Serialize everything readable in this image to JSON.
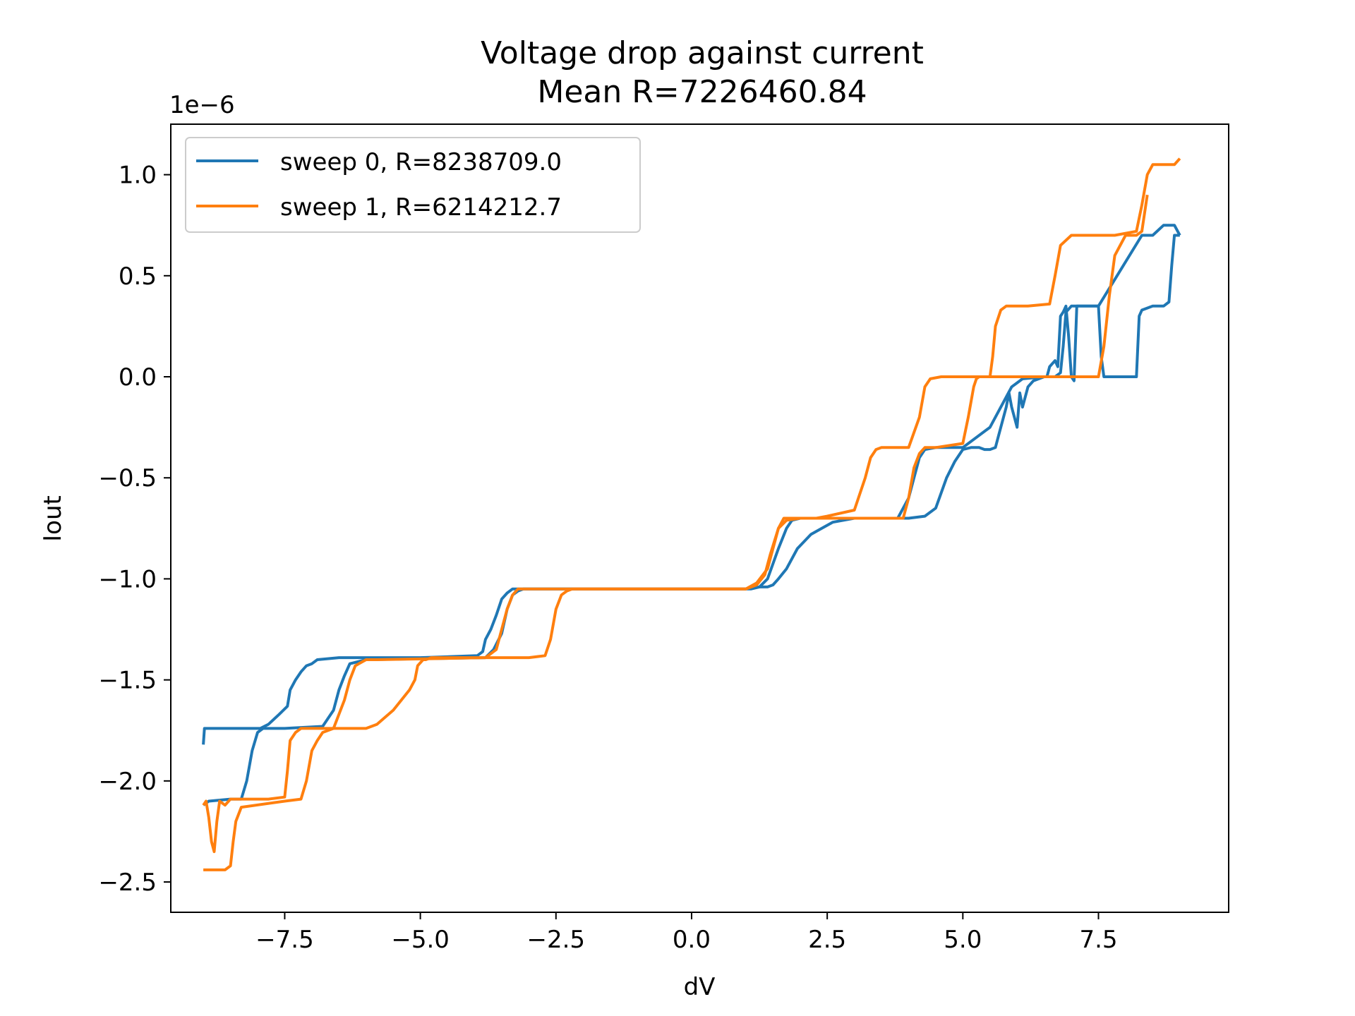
{
  "chart_data": {
    "type": "line",
    "title": "Voltage drop against current",
    "subtitle": "Mean R=7226460.84",
    "xlabel": "dV",
    "ylabel": "Iout",
    "y_offset_text": "1e−6",
    "xlim": [
      -9.6,
      9.9
    ],
    "ylim": [
      -2.65,
      1.25
    ],
    "x_ticks": [
      -7.5,
      -5.0,
      -2.5,
      0.0,
      2.5,
      5.0,
      7.5
    ],
    "x_tick_labels": [
      "−7.5",
      "−5.0",
      "−2.5",
      "0.0",
      "2.5",
      "5.0",
      "7.5"
    ],
    "y_ticks": [
      1.0,
      0.5,
      0.0,
      -0.5,
      -1.0,
      -1.5,
      -2.0,
      -2.5
    ],
    "y_tick_labels": [
      "1.0",
      "0.5",
      "0.0",
      "−0.5",
      "−1.0",
      "−1.5",
      "−2.0",
      "−2.5"
    ],
    "grid": false,
    "legend_position": "upper-left",
    "series": [
      {
        "name": "sweep 0, R=8238709.0",
        "color": "#1f77b4",
        "x": [
          -9.0,
          -8.98,
          -8.95,
          -8.0,
          -7.95,
          -7.8,
          -7.6,
          -7.45,
          -7.4,
          -7.3,
          -7.2,
          -7.1,
          -7.0,
          -6.9,
          -6.5,
          -6.3,
          -5.0,
          -3.95,
          -3.85,
          -3.8,
          -3.7,
          -3.6,
          -3.5,
          -3.4,
          -3.3,
          -3.2,
          -3.0,
          -2.5,
          1.0,
          1.1,
          1.25,
          1.4,
          1.5,
          1.6,
          1.75,
          1.95,
          2.2,
          2.4,
          2.6,
          3.0,
          4.0,
          4.3,
          4.5,
          4.7,
          4.85,
          4.95,
          5.0,
          5.15,
          5.3,
          5.4,
          5.5,
          5.6,
          5.65,
          5.8,
          5.85,
          5.9,
          6.0,
          6.05,
          6.1,
          6.2,
          6.3,
          6.5,
          6.55,
          6.6,
          6.7,
          6.75,
          6.8,
          6.85,
          6.9,
          6.95,
          7.0,
          7.05,
          7.1,
          7.15,
          7.2,
          7.25,
          7.3,
          7.5,
          7.55,
          7.6,
          7.62,
          7.7,
          8.0,
          8.2,
          8.25,
          8.3,
          8.5,
          8.7,
          8.8,
          8.85,
          8.9,
          9.0,
          9.0
        ],
        "y": [
          -1.82,
          -1.74,
          -1.74,
          -1.74,
          -1.74,
          -1.72,
          -1.67,
          -1.63,
          -1.55,
          -1.5,
          -1.46,
          -1.43,
          -1.42,
          -1.4,
          -1.39,
          -1.39,
          -1.39,
          -1.38,
          -1.36,
          -1.3,
          -1.25,
          -1.18,
          -1.1,
          -1.07,
          -1.05,
          -1.05,
          -1.05,
          -1.05,
          -1.05,
          -1.05,
          -1.04,
          -1.04,
          -1.03,
          -1.0,
          -0.95,
          -0.85,
          -0.78,
          -0.75,
          -0.72,
          -0.7,
          -0.7,
          -0.69,
          -0.65,
          -0.5,
          -0.42,
          -0.38,
          -0.36,
          -0.35,
          -0.35,
          -0.36,
          -0.36,
          -0.35,
          -0.3,
          -0.15,
          -0.08,
          -0.15,
          -0.25,
          -0.08,
          -0.15,
          -0.05,
          -0.02,
          0.0,
          0.0,
          0.05,
          0.08,
          0.05,
          0.3,
          0.32,
          0.35,
          0.2,
          0.0,
          -0.02,
          0.35,
          0.35,
          0.35,
          0.35,
          0.35,
          0.35,
          0.1,
          0.0,
          0.0,
          0.0,
          0.0,
          0.0,
          0.3,
          0.33,
          0.35,
          0.35,
          0.37,
          0.55,
          0.7,
          0.7,
          0.7
        ]
      },
      {
        "name": "",
        "color": "#1f77b4",
        "x": [
          -9.0,
          -8.9,
          -8.5,
          -8.3,
          -8.2,
          -8.1,
          -8.0,
          -7.9,
          -7.5,
          -6.8,
          -6.6,
          -6.5,
          -6.4,
          -6.3,
          -6.0,
          -3.8,
          -3.65,
          -3.5,
          -3.4,
          -3.3,
          -3.2,
          -3.1,
          -3.0,
          1.0,
          1.25,
          1.4,
          1.6,
          1.75,
          1.85,
          2.0,
          2.2,
          2.5,
          3.0,
          3.8,
          4.0,
          4.1,
          4.2,
          4.3,
          4.5,
          5.0,
          5.5,
          5.8,
          5.9,
          6.0,
          6.1,
          6.5,
          6.7,
          6.8,
          6.85,
          6.9,
          7.0,
          7.05,
          7.1,
          7.2,
          7.5,
          8.3,
          8.5,
          8.7,
          8.9,
          9.0
        ],
        "y": [
          -2.12,
          -2.1,
          -2.09,
          -2.09,
          -2.0,
          -1.85,
          -1.76,
          -1.74,
          -1.74,
          -1.73,
          -1.65,
          -1.55,
          -1.48,
          -1.42,
          -1.4,
          -1.39,
          -1.35,
          -1.27,
          -1.15,
          -1.08,
          -1.06,
          -1.05,
          -1.05,
          -1.05,
          -1.04,
          -1.0,
          -0.85,
          -0.75,
          -0.71,
          -0.7,
          -0.7,
          -0.7,
          -0.7,
          -0.7,
          -0.6,
          -0.5,
          -0.4,
          -0.36,
          -0.35,
          -0.35,
          -0.25,
          -0.1,
          -0.05,
          -0.03,
          -0.01,
          0.0,
          0.0,
          0.02,
          0.15,
          0.32,
          0.35,
          0.35,
          0.35,
          0.35,
          0.35,
          0.7,
          0.7,
          0.75,
          0.75,
          0.7
        ]
      },
      {
        "name": "sweep 1, R=6214212.7",
        "color": "#ff7f0e",
        "x": [
          -9.0,
          -8.9,
          -8.6,
          -8.5,
          -8.45,
          -8.4,
          -8.3,
          -7.5,
          -7.2,
          -7.1,
          -7.0,
          -6.9,
          -6.8,
          -6.6,
          -6.0,
          -5.8,
          -5.5,
          -5.2,
          -5.1,
          -5.05,
          -4.95,
          -4.9,
          -4.8,
          -3.0,
          -2.7,
          -2.6,
          -2.5,
          -2.4,
          -2.3,
          -2.2,
          -2.0,
          1.0,
          1.2,
          1.35,
          1.45,
          1.6,
          1.75,
          2.0,
          2.3,
          2.5,
          3.0,
          3.2,
          3.3,
          3.4,
          3.5,
          3.55,
          3.7,
          4.0,
          4.2,
          4.3,
          4.4,
          4.6,
          5.0,
          5.5,
          5.55,
          5.6,
          5.7,
          5.8,
          6.2,
          6.6,
          6.7,
          6.8,
          7.0,
          7.5,
          7.8,
          8.2,
          8.3,
          8.4,
          8.5,
          8.6,
          8.9,
          9.0
        ],
        "y": [
          -2.44,
          -2.44,
          -2.44,
          -2.42,
          -2.3,
          -2.2,
          -2.13,
          -2.1,
          -2.09,
          -2.0,
          -1.85,
          -1.8,
          -1.76,
          -1.74,
          -1.74,
          -1.72,
          -1.65,
          -1.55,
          -1.5,
          -1.43,
          -1.4,
          -1.4,
          -1.39,
          -1.39,
          -1.38,
          -1.3,
          -1.15,
          -1.08,
          -1.06,
          -1.05,
          -1.05,
          -1.05,
          -1.03,
          -0.98,
          -0.88,
          -0.75,
          -0.71,
          -0.7,
          -0.7,
          -0.69,
          -0.66,
          -0.5,
          -0.4,
          -0.36,
          -0.35,
          -0.35,
          -0.35,
          -0.35,
          -0.2,
          -0.05,
          -0.01,
          0.0,
          0.0,
          0.0,
          0.1,
          0.25,
          0.33,
          0.35,
          0.35,
          0.36,
          0.5,
          0.65,
          0.7,
          0.7,
          0.7,
          0.72,
          0.85,
          1.0,
          1.05,
          1.05,
          1.05,
          1.08
        ]
      },
      {
        "name": "",
        "color": "#ff7f0e",
        "x": [
          -9.0,
          -8.95,
          -8.9,
          -8.85,
          -8.8,
          -8.75,
          -8.7,
          -8.6,
          -8.5,
          -8.2,
          -8.0,
          -7.8,
          -7.5,
          -7.45,
          -7.4,
          -7.3,
          -7.2,
          -7.0,
          -6.8,
          -6.6,
          -6.4,
          -6.3,
          -6.2,
          -6.0,
          -5.8,
          -3.8,
          -3.6,
          -3.5,
          -3.4,
          -3.3,
          -3.2,
          -3.0,
          1.0,
          1.2,
          1.4,
          1.5,
          1.6,
          1.7,
          2.0,
          3.0,
          3.9,
          4.0,
          4.1,
          4.2,
          4.3,
          4.5,
          5.0,
          5.1,
          5.2,
          5.25,
          5.3,
          6.0,
          6.5,
          7.5,
          7.6,
          7.7,
          7.8,
          8.0,
          8.2,
          8.3,
          8.4
        ],
        "y": [
          -2.12,
          -2.1,
          -2.18,
          -2.3,
          -2.35,
          -2.2,
          -2.1,
          -2.12,
          -2.09,
          -2.09,
          -2.09,
          -2.09,
          -2.08,
          -1.95,
          -1.8,
          -1.76,
          -1.74,
          -1.74,
          -1.74,
          -1.74,
          -1.6,
          -1.5,
          -1.43,
          -1.4,
          -1.4,
          -1.39,
          -1.35,
          -1.25,
          -1.15,
          -1.08,
          -1.05,
          -1.05,
          -1.05,
          -1.02,
          -0.95,
          -0.85,
          -0.75,
          -0.7,
          -0.7,
          -0.7,
          -0.7,
          -0.6,
          -0.45,
          -0.38,
          -0.35,
          -0.35,
          -0.33,
          -0.2,
          -0.05,
          -0.01,
          0.0,
          0.0,
          0.0,
          0.0,
          0.15,
          0.4,
          0.6,
          0.7,
          0.7,
          0.72,
          0.9
        ]
      }
    ]
  }
}
